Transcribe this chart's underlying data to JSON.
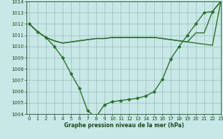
{
  "line1": {
    "x": [
      0,
      1,
      2,
      3,
      4,
      5,
      6,
      7,
      8,
      9,
      10,
      11,
      12,
      13,
      14,
      15,
      16,
      17,
      18,
      19,
      20,
      21,
      22,
      23
    ],
    "y": [
      1012,
      1011.3,
      1010.8,
      1010.5,
      1010.3,
      1010.4,
      1010.5,
      1010.6,
      1010.7,
      1010.7,
      1010.8,
      1010.8,
      1010.8,
      1010.8,
      1010.8,
      1010.8,
      1010.7,
      1010.6,
      1010.5,
      1010.4,
      1010.3,
      1010.2,
      1010.1,
      1014.0
    ],
    "color": "#2a6e2a",
    "linewidth": 1.0
  },
  "line2": {
    "x": [
      0,
      1,
      2,
      3,
      4,
      5,
      6,
      7,
      8,
      9,
      10,
      11,
      12,
      13,
      14,
      15,
      16,
      17,
      18,
      19,
      20,
      21,
      22,
      23
    ],
    "y": [
      1012,
      1011.3,
      1010.8,
      1010.5,
      1010.3,
      1010.4,
      1010.5,
      1010.6,
      1010.7,
      1010.7,
      1010.8,
      1010.8,
      1010.8,
      1010.8,
      1010.8,
      1010.8,
      1010.7,
      1010.6,
      1010.5,
      1010.4,
      1011.2,
      1011.2,
      1013.1,
      1014.0
    ],
    "color": "#2a6e2a",
    "linewidth": 1.0
  },
  "line3": {
    "x": [
      0,
      1,
      2,
      3,
      4,
      5,
      6,
      7,
      8,
      9,
      10,
      11,
      12,
      13,
      14,
      15,
      16,
      17,
      18,
      19,
      20,
      21,
      22,
      23
    ],
    "y": [
      1012,
      1011.3,
      1010.8,
      1010.0,
      1009.0,
      1007.6,
      1006.3,
      1004.3,
      1003.7,
      1004.8,
      1005.1,
      1005.2,
      1005.3,
      1005.4,
      1005.6,
      1006.0,
      1007.1,
      1008.9,
      1010.0,
      1011.0,
      1012.0,
      1013.0,
      1013.1,
      1014.0
    ],
    "color": "#2a6e2a",
    "linewidth": 1.0,
    "marker": "D",
    "markersize": 2.5
  },
  "bg_color": "#c8e8e8",
  "grid_color": "#9bbaba",
  "text_color": "#1a4a1a",
  "xlabel": "Graphe pression niveau de la mer (hPa)",
  "ylim": [
    1004,
    1014
  ],
  "xlim": [
    -0.3,
    23
  ],
  "yticks": [
    1004,
    1005,
    1006,
    1007,
    1008,
    1009,
    1010,
    1011,
    1012,
    1013,
    1014
  ],
  "xticks": [
    0,
    1,
    2,
    3,
    4,
    5,
    6,
    7,
    8,
    9,
    10,
    11,
    12,
    13,
    14,
    15,
    16,
    17,
    18,
    19,
    20,
    21,
    22,
    23
  ],
  "xlabel_fontsize": 5.5,
  "tick_labelsize": 5
}
